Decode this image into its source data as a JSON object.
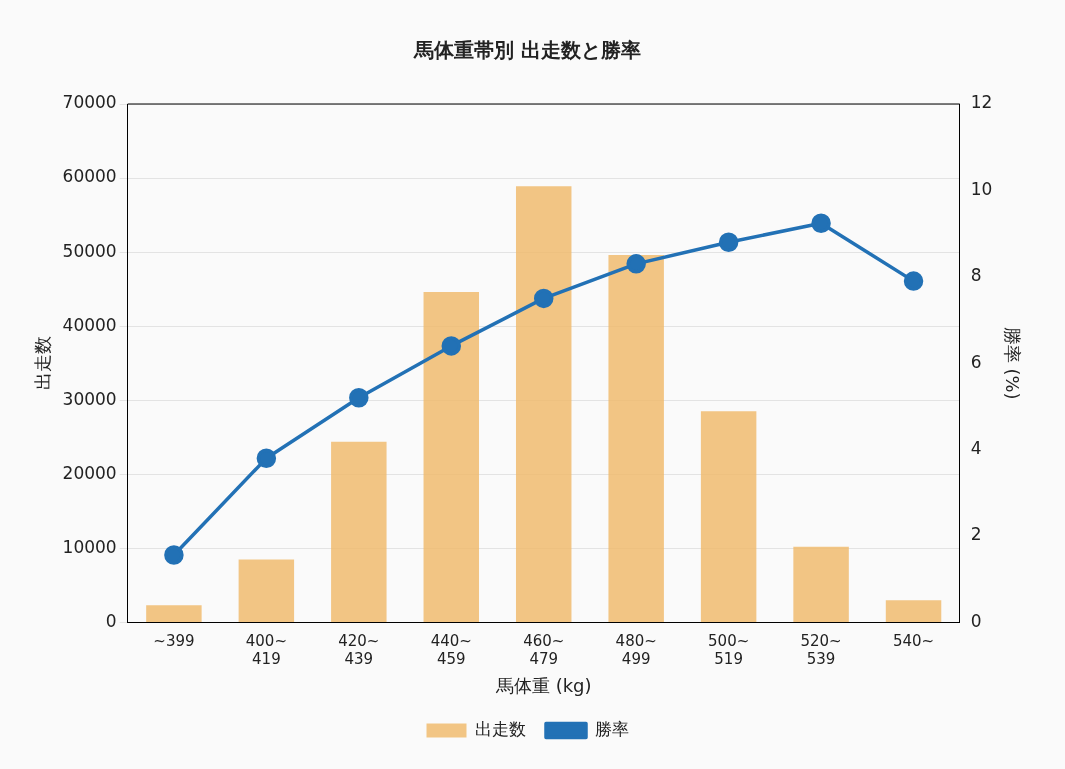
{
  "chart_data": {
    "type": "bar",
    "title": "馬体重帯別 出走数と勝率",
    "xlabel": "馬体重 (kg)",
    "ylabel": "出走数",
    "y2label": "勝率 (%)",
    "categories": [
      "~399",
      "400~\n419",
      "420~\n439",
      "440~\n459",
      "460~\n479",
      "480~\n499",
      "500~\n519",
      "520~\n539",
      "540~"
    ],
    "series": [
      {
        "name": "出走数",
        "color": "#f0b866",
        "values": [
          2300,
          8500,
          24400,
          44600,
          58900,
          49600,
          28500,
          10200,
          3000
        ]
      },
      {
        "name": "勝率",
        "type": "line",
        "axis": "y2",
        "color": "#2271b5",
        "marker": "circle",
        "values": [
          1.56,
          3.8,
          5.2,
          6.4,
          7.5,
          8.3,
          8.8,
          9.24,
          7.9
        ]
      }
    ],
    "ylim": [
      0,
      70000
    ],
    "yticks": [
      0,
      10000,
      20000,
      30000,
      40000,
      50000,
      60000,
      70000
    ],
    "y2lim": [
      0,
      12
    ],
    "y2ticks": [
      0,
      2,
      4,
      6,
      8,
      10,
      12
    ],
    "grid": "y",
    "legend": "bottom"
  }
}
